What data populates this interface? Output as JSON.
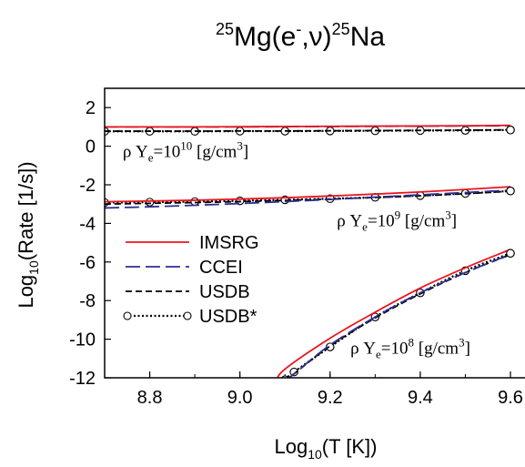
{
  "chart_data": {
    "type": "line",
    "title": {
      "prefix": "25",
      "base": "Mg(e",
      "sup": "-",
      "mid": ",ν)",
      "prefix2": "25",
      "tail": "Na"
    },
    "xlabel": {
      "pre": "Log",
      "sub": "10",
      "post": "(T [K])"
    },
    "ylabel": {
      "pre": "Log",
      "sub": "10",
      "post": "(Rate [1/s])"
    },
    "xlim": [
      8.7,
      9.6
    ],
    "ylim": [
      -12,
      3
    ],
    "xticks": [
      "8.8",
      "9.0",
      "9.2",
      "9.4",
      "9.6"
    ],
    "xtick_values": [
      8.8,
      9.0,
      9.2,
      9.4,
      9.6
    ],
    "yticks": [
      "2",
      "0",
      "-2",
      "-4",
      "-6",
      "-8",
      "-10",
      "-12"
    ],
    "ytick_values": [
      2,
      0,
      -2,
      -4,
      -6,
      -8,
      -10,
      -12
    ],
    "grid": false,
    "legend_position": "center-left",
    "legend": [
      {
        "label": "IMSRG",
        "color": "#e8161f",
        "style": "solid"
      },
      {
        "label": "CCEI",
        "color": "#2e3192",
        "style": "dash"
      },
      {
        "label": "USDB",
        "color": "#000000",
        "style": "shortdash"
      },
      {
        "label": "USDB*",
        "color": "#000000",
        "style": "dotted-circle"
      }
    ],
    "annotations": [
      {
        "rho": "ρ Y",
        "sub": "e",
        "eq": "=10",
        "exp": "10",
        "unit": " [g/cm",
        "unit_exp": "3",
        "close": "]",
        "x": 8.74,
        "y": -0.55
      },
      {
        "rho": "ρ Y",
        "sub": "e",
        "eq": "=10",
        "exp": "9",
        "unit": " [g/cm",
        "unit_exp": "3",
        "close": "]",
        "x": 9.215,
        "y": -4.15
      },
      {
        "rho": "ρ Y",
        "sub": "e",
        "eq": "=10",
        "exp": "8",
        "unit": " [g/cm",
        "unit_exp": "3",
        "close": "]",
        "x": 9.245,
        "y": -10.75
      }
    ],
    "x": [
      8.7,
      8.8,
      8.9,
      9.0,
      9.1,
      9.2,
      9.3,
      9.4,
      9.5,
      9.6
    ],
    "series": [
      {
        "group": "1e10",
        "style": "IMSRG",
        "values": [
          1.0,
          1.0,
          1.0,
          1.01,
          1.02,
          1.03,
          1.04,
          1.05,
          1.06,
          1.08
        ]
      },
      {
        "group": "1e10",
        "style": "CCEI",
        "values": [
          1.0,
          1.0,
          1.0,
          1.0,
          1.01,
          1.02,
          1.03,
          1.04,
          1.05,
          1.06
        ]
      },
      {
        "group": "1e10",
        "style": "USDB",
        "values": [
          0.78,
          0.78,
          0.78,
          0.79,
          0.79,
          0.8,
          0.81,
          0.82,
          0.83,
          0.85
        ]
      },
      {
        "group": "1e10",
        "style": "USDB*",
        "values": [
          0.77,
          0.77,
          0.77,
          0.78,
          0.78,
          0.79,
          0.8,
          0.81,
          0.82,
          0.84
        ]
      },
      {
        "group": "1e9",
        "style": "IMSRG",
        "values": [
          -2.88,
          -2.84,
          -2.8,
          -2.74,
          -2.67,
          -2.58,
          -2.48,
          -2.37,
          -2.24,
          -2.1
        ]
      },
      {
        "group": "1e9",
        "style": "CCEI",
        "values": [
          -3.2,
          -3.14,
          -3.06,
          -2.97,
          -2.87,
          -2.76,
          -2.64,
          -2.52,
          -2.4,
          -2.28
        ]
      },
      {
        "group": "1e9",
        "style": "USDB",
        "values": [
          -3.0,
          -2.96,
          -2.92,
          -2.87,
          -2.81,
          -2.74,
          -2.66,
          -2.57,
          -2.46,
          -2.33
        ]
      },
      {
        "group": "1e9",
        "style": "USDB*",
        "values": [
          -2.92,
          -2.9,
          -2.87,
          -2.83,
          -2.78,
          -2.72,
          -2.65,
          -2.56,
          -2.45,
          -2.32
        ]
      },
      {
        "group": "1e8",
        "style": "IMSRG",
        "x": [
          9.08,
          9.1,
          9.2,
          9.3,
          9.4,
          9.5,
          9.6
        ],
        "values": [
          -12.2,
          -11.55,
          -9.95,
          -8.6,
          -7.35,
          -6.3,
          -5.35
        ]
      },
      {
        "group": "1e8",
        "style": "CCEI",
        "x": [
          9.1,
          9.12,
          9.2,
          9.3,
          9.4,
          9.5,
          9.6
        ],
        "values": [
          -12.2,
          -11.8,
          -10.3,
          -8.85,
          -7.6,
          -6.55,
          -5.6
        ]
      },
      {
        "group": "1e8",
        "style": "USDB",
        "x": [
          9.1,
          9.12,
          9.2,
          9.3,
          9.4,
          9.5,
          9.6
        ],
        "values": [
          -12.2,
          -11.8,
          -10.35,
          -8.9,
          -7.65,
          -6.55,
          -5.62
        ]
      },
      {
        "group": "1e8",
        "style": "USDB*",
        "x": [
          9.1,
          9.12,
          9.2,
          9.3,
          9.4,
          9.5,
          9.6
        ],
        "values": [
          -12.1,
          -11.7,
          -10.4,
          -8.85,
          -7.6,
          -6.45,
          -5.55
        ]
      }
    ]
  }
}
